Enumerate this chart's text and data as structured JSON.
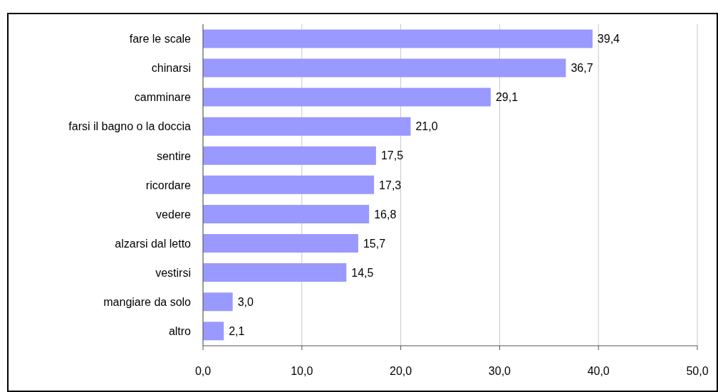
{
  "chart_data": {
    "type": "bar",
    "orientation": "horizontal",
    "categories": [
      "fare le scale",
      "chinarsi",
      "camminare",
      "farsi il bagno o la doccia",
      "sentire",
      "ricordare",
      "vedere",
      "alzarsi dal letto",
      "vestirsi",
      "mangiare da solo",
      "altro"
    ],
    "values": [
      39.4,
      36.7,
      29.1,
      21.0,
      17.5,
      17.3,
      16.8,
      15.7,
      14.5,
      3.0,
      2.1
    ],
    "value_labels": [
      "39,4",
      "36,7",
      "29,1",
      "21,0",
      "17,5",
      "17,3",
      "16,8",
      "15,7",
      "14,5",
      "3,0",
      "2,1"
    ],
    "color": "#9999ff",
    "xlim": [
      0,
      50
    ],
    "xticks": [
      {
        "value": 0,
        "label": "0,0"
      },
      {
        "value": 10,
        "label": "10,0"
      },
      {
        "value": 20,
        "label": "20,0"
      },
      {
        "value": 30,
        "label": "30,0"
      },
      {
        "value": 40,
        "label": "40,0"
      },
      {
        "value": 50,
        "label": "50,0"
      }
    ],
    "grid": "x"
  }
}
